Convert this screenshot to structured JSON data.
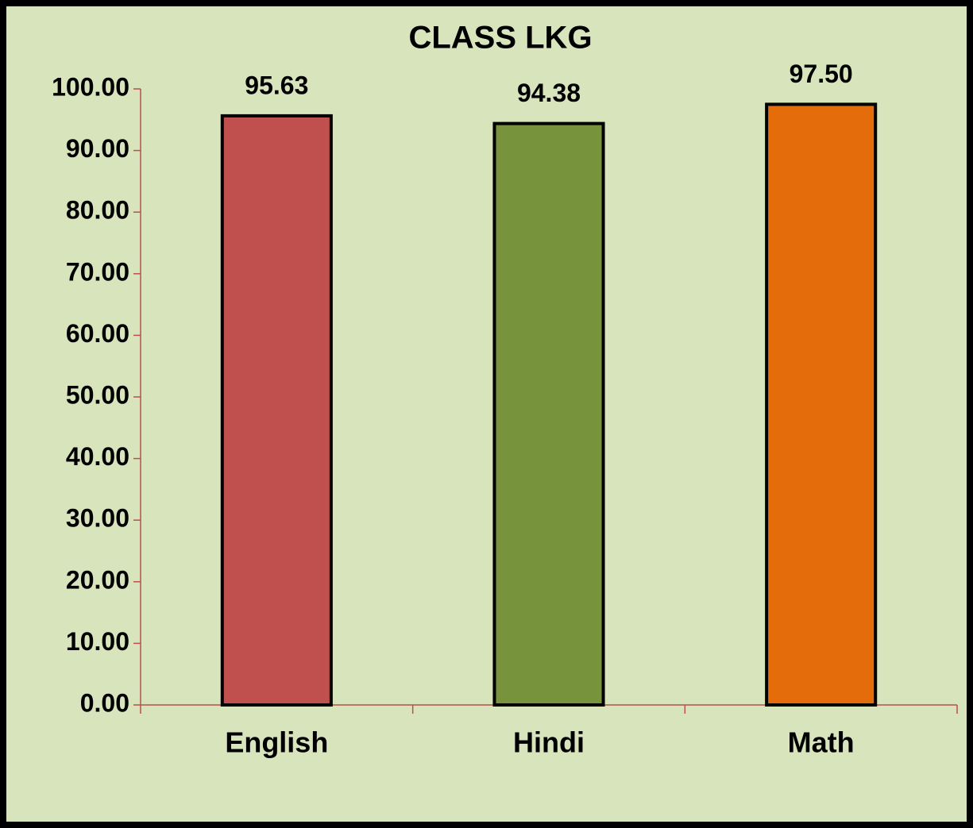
{
  "chart_data": {
    "type": "bar",
    "title": "CLASS LKG",
    "categories": [
      "English",
      "Hindi",
      "Math"
    ],
    "values": [
      95.63,
      94.38,
      97.5
    ],
    "value_labels": [
      "95.63",
      "94.38",
      "97.50"
    ],
    "colors": [
      "#c0504d",
      "#77933c",
      "#e46c0a"
    ],
    "ylim": [
      0,
      100
    ],
    "yticks": [
      {
        "value": 0,
        "label": "0.00"
      },
      {
        "value": 10,
        "label": "10.00"
      },
      {
        "value": 20,
        "label": "20.00"
      },
      {
        "value": 30,
        "label": "30.00"
      },
      {
        "value": 40,
        "label": "40.00"
      },
      {
        "value": 50,
        "label": "50.00"
      },
      {
        "value": 60,
        "label": "60.00"
      },
      {
        "value": 70,
        "label": "70.00"
      },
      {
        "value": 80,
        "label": "80.00"
      },
      {
        "value": 90,
        "label": "90.00"
      },
      {
        "value": 100,
        "label": "100.00"
      }
    ],
    "grid": false
  }
}
